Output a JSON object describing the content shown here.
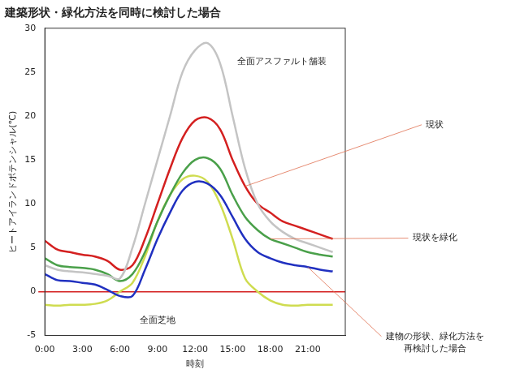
{
  "chart_data": {
    "type": "line",
    "title": "建築形状・緑化方法を同時に検討した場合",
    "x_label": "時刻",
    "y_label": "ヒートアイランドポテンシャル(℃)",
    "x": [
      0,
      1,
      2,
      3,
      4,
      5,
      6,
      7,
      8,
      9,
      10,
      11,
      12,
      13,
      14,
      15,
      16,
      17,
      18,
      19,
      20,
      21,
      22,
      23
    ],
    "xlim": [
      0,
      24
    ],
    "xticks": [
      {
        "value": 0,
        "label": "0:00"
      },
      {
        "value": 3,
        "label": "3:00"
      },
      {
        "value": 6,
        "label": "6:00"
      },
      {
        "value": 9,
        "label": "9:00"
      },
      {
        "value": 12,
        "label": "12:00"
      },
      {
        "value": 15,
        "label": "15:00"
      },
      {
        "value": 18,
        "label": "18:00"
      },
      {
        "value": 21,
        "label": "21:00"
      }
    ],
    "ylim": [
      -5,
      30
    ],
    "yticks": [
      -5,
      0,
      5,
      10,
      15,
      20,
      25,
      30
    ],
    "zero_line": 0,
    "grid": false,
    "series": [
      {
        "name": "全面アスファルト舗装",
        "color": "#c4c4c4",
        "values": [
          3,
          2.5,
          2.3,
          2.2,
          2,
          1.8,
          1.5,
          5,
          10,
          15,
          20,
          25,
          27.5,
          28.3,
          26,
          20,
          14,
          10,
          8,
          6.8,
          6,
          5.5,
          5,
          4.5
        ]
      },
      {
        "name": "現状",
        "color": "#d42020",
        "values": [
          5.8,
          4.8,
          4.5,
          4.2,
          4,
          3.5,
          2.5,
          3,
          6,
          10,
          14,
          17.5,
          19.5,
          19.8,
          18.5,
          15,
          12,
          10,
          9,
          8,
          7.5,
          7,
          6.5,
          6
        ]
      },
      {
        "name": "現状を緑化",
        "color": "#4aa04a",
        "values": [
          3.8,
          3,
          2.8,
          2.7,
          2.5,
          2,
          1.2,
          2,
          4.5,
          8,
          11,
          13.5,
          15,
          15.2,
          14,
          11,
          8.5,
          7,
          6,
          5.5,
          5,
          4.5,
          4.2,
          4
        ]
      },
      {
        "name": "建物の形状、緑化方法を再検討した場合",
        "color": "#2030c0",
        "values": [
          2,
          1.3,
          1.2,
          1,
          0.8,
          0.2,
          -0.5,
          -0.5,
          2.5,
          6,
          9,
          11.5,
          12.5,
          12.3,
          11,
          8.5,
          6,
          4.5,
          3.8,
          3.3,
          3,
          2.8,
          2.5,
          2.3
        ]
      },
      {
        "name": "全面芝地",
        "color": "#cfdc50",
        "values": [
          -1.5,
          -1.6,
          -1.5,
          -1.5,
          -1.4,
          -1,
          0,
          1,
          4,
          8,
          11,
          12.8,
          13.2,
          12.5,
          10,
          6,
          1.5,
          0,
          -1,
          -1.5,
          -1.6,
          -1.5,
          -1.5,
          -1.5
        ]
      }
    ]
  }
}
